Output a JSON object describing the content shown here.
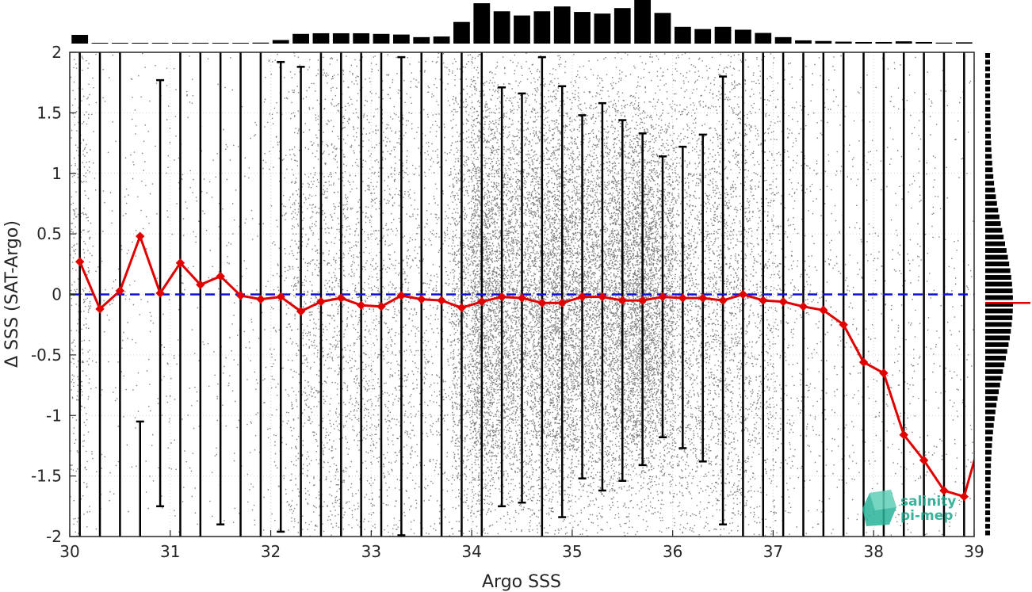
{
  "chart_data": {
    "type": "scatter",
    "xlabel": "Argo SSS",
    "ylabel": "Δ SSS (SAT-Argo)",
    "xlim": [
      30,
      39
    ],
    "ylim": [
      -2,
      2
    ],
    "xticks": [
      "30",
      "31",
      "32",
      "33",
      "34",
      "35",
      "36",
      "37",
      "38",
      "39"
    ],
    "yticks": [
      "2",
      "1.5",
      "1",
      "0.5",
      "0",
      "-0.5",
      "-1",
      "-1.5",
      "-2"
    ],
    "grid": "dotted",
    "reference_line": {
      "y": 0,
      "color": "#1010d0",
      "style": "dashed"
    },
    "bin_centers": [
      30.1,
      30.3,
      30.5,
      30.7,
      30.9,
      31.1,
      31.3,
      31.5,
      31.7,
      31.9,
      32.1,
      32.3,
      32.5,
      32.7,
      32.9,
      33.1,
      33.3,
      33.5,
      33.7,
      33.9,
      34.1,
      34.3,
      34.5,
      34.7,
      34.9,
      35.1,
      35.3,
      35.5,
      35.7,
      35.9,
      36.1,
      36.3,
      36.5,
      36.7,
      36.9,
      37.1,
      37.3,
      37.5,
      37.7,
      37.9,
      38.1,
      38.3,
      38.5,
      38.7,
      38.9
    ],
    "series": [
      {
        "type": "line",
        "color": "#e00000",
        "values": [
          0.27,
          -0.12,
          0.03,
          0.48,
          0.01,
          0.26,
          0.08,
          0.15,
          -0.01,
          -0.04,
          -0.02,
          -0.14,
          -0.06,
          -0.03,
          -0.09,
          -0.1,
          -0.01,
          -0.04,
          -0.05,
          -0.11,
          -0.06,
          -0.02,
          -0.03,
          -0.07,
          -0.07,
          -0.02,
          -0.02,
          -0.05,
          -0.05,
          -0.02,
          -0.03,
          -0.03,
          -0.05,
          0.0,
          -0.05,
          -0.06,
          -0.1,
          -0.13,
          -0.25,
          -0.56,
          -0.65,
          -1.16,
          -1.37,
          -1.62,
          -1.67
        ]
      }
    ],
    "error_bars": {
      "color": "#000000",
      "lower": [
        -2,
        -2,
        -2,
        -2,
        -1.75,
        -2,
        -2,
        -1.9,
        -2,
        -2,
        -1.96,
        -2,
        -2,
        -2,
        -2,
        -2,
        -1.99,
        -2,
        -2,
        -2,
        -2,
        -1.75,
        -1.72,
        -2,
        -1.84,
        -1.52,
        -1.62,
        -1.54,
        -1.41,
        -1.18,
        -1.27,
        -1.38,
        -1.9,
        -2,
        -2,
        -2,
        -2,
        -2,
        -2,
        -2,
        -2,
        -2,
        -2,
        -2,
        -2
      ],
      "upper": [
        2,
        2,
        2,
        -1.05,
        1.77,
        2,
        2,
        2,
        2,
        2,
        1.92,
        1.88,
        2,
        2,
        2,
        2,
        1.96,
        2,
        2,
        2,
        2,
        1.71,
        1.66,
        1.96,
        1.72,
        1.48,
        1.58,
        1.44,
        1.33,
        1.14,
        1.22,
        1.32,
        1.8,
        2,
        2,
        2,
        2,
        2,
        2,
        2,
        2,
        2,
        2,
        2,
        2
      ]
    },
    "top_histogram": {
      "color": "#000000",
      "values": [
        0.27,
        0.02,
        0.02,
        0.02,
        0.02,
        0.02,
        0.02,
        0.02,
        0.02,
        0.03,
        0.11,
        0.3,
        0.32,
        0.32,
        0.32,
        0.3,
        0.28,
        0.2,
        0.22,
        0.67,
        1.25,
        1.0,
        0.87,
        1.0,
        1.15,
        0.98,
        0.93,
        1.1,
        1.35,
        0.95,
        0.52,
        0.45,
        0.52,
        0.43,
        0.33,
        0.2,
        0.1,
        0.08,
        0.06,
        0.05,
        0.05,
        0.07,
        0.05,
        0.03,
        0.04
      ]
    },
    "side_histogram": {
      "color": "#000000",
      "mean_marker": {
        "y": -0.07,
        "color": "#e00000"
      }
    },
    "scatter_color": "#7f7f7f"
  },
  "logo": {
    "line1": "salinity",
    "line2": "pi-mep"
  }
}
